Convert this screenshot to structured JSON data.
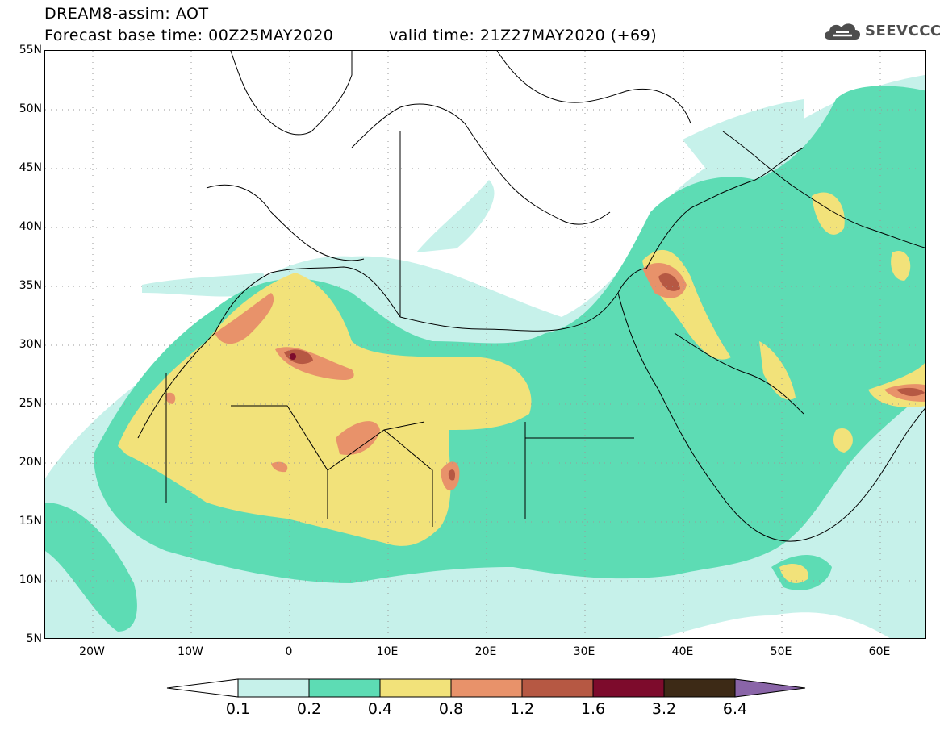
{
  "header": {
    "title": "DREAM8-assim: AOT",
    "base_time": "Forecast base time: 00Z25MAY2020",
    "valid_time": "valid time: 21Z27MAY2020 (+69)",
    "logo_text": "SEEVCCC"
  },
  "axes": {
    "lat_labels": [
      "55N",
      "50N",
      "45N",
      "40N",
      "35N",
      "30N",
      "25N",
      "20N",
      "15N",
      "10N",
      "5N"
    ],
    "lon_labels": [
      "20W",
      "10W",
      "0",
      "10E",
      "20E",
      "30E",
      "40E",
      "50E",
      "60E"
    ]
  },
  "colorbar": {
    "levels": [
      "0.1",
      "0.2",
      "0.4",
      "0.8",
      "1.2",
      "1.6",
      "3.2",
      "6.4"
    ],
    "colors": [
      "#c6f1ea",
      "#5ddcb4",
      "#f2e27a",
      "#e8926a",
      "#b65843",
      "#7d0b2c",
      "#3d2a16",
      "#8a65a8"
    ]
  }
}
